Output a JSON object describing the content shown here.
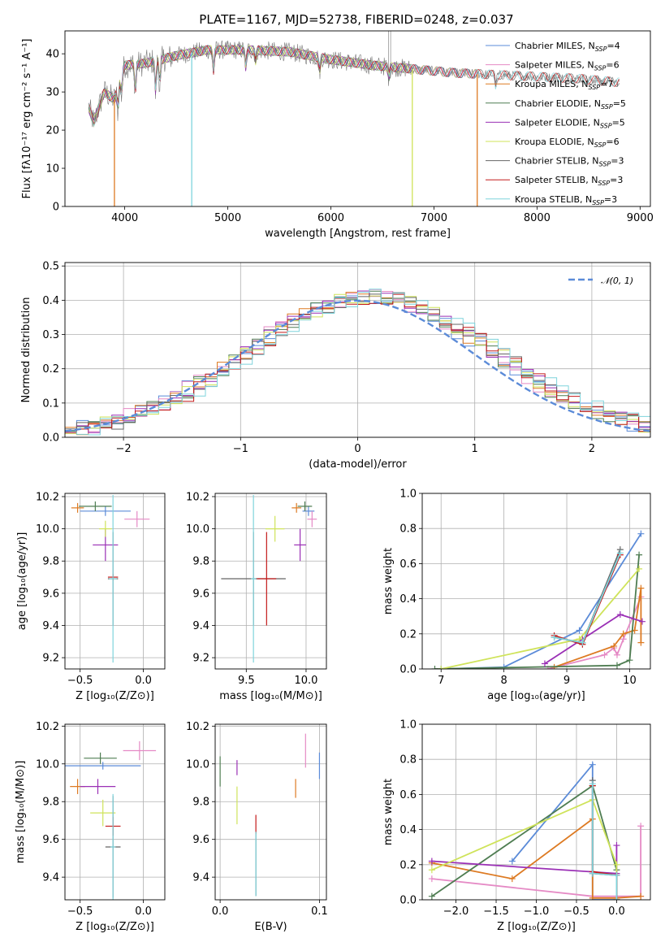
{
  "title": "PLATE=1167, MJD=52738, FIBERID=0248, z=0.037",
  "colors": {
    "chabrier_miles": "#5b8bd8",
    "salpeter_miles": "#e58ac5",
    "kroupa_miles": "#dd7a22",
    "chabrier_elodie": "#4f7d52",
    "salpeter_elodie": "#9a2fb5",
    "kroupa_elodie": "#cfe35a",
    "chabrier_stelib": "#666666",
    "salpeter_stelib": "#c41a1a",
    "kroupa_stelib": "#7fd4dc"
  },
  "chart_data": [
    {
      "id": "spectrum",
      "type": "line",
      "xlabel": "wavelength [Angstrom, rest frame]",
      "ylabel": "Flux [f$_\\lambda$10$^{-17}$ erg cm$^{-2}$ s$^{-1}$ A$^{-1}$]",
      "ylabel_display": "Flux [fλ10⁻¹⁷ erg cm⁻² s⁻¹ A⁻¹]",
      "xlim": [
        3420,
        9100
      ],
      "ylim": [
        0,
        46
      ],
      "xticks": [
        4000,
        5000,
        6000,
        7000,
        8000,
        9000
      ],
      "yticks": [
        0,
        10,
        20,
        30,
        40
      ],
      "grid": false,
      "legend_position": "top-right",
      "series": [
        {
          "name": "Chabrier MILES, N_SSP=4",
          "key": "chabrier_miles",
          "x_range": [
            3650,
            7420
          ]
        },
        {
          "name": "Salpeter MILES, N_SSP=6",
          "key": "salpeter_miles",
          "x_range": [
            3650,
            7420
          ]
        },
        {
          "name": "Kroupa MILES, N_SSP=7",
          "key": "kroupa_miles",
          "x_range": [
            3650,
            7420
          ]
        },
        {
          "name": "Chabrier ELODIE, N_SSP=5",
          "key": "chabrier_elodie",
          "x_range": [
            3650,
            6790
          ]
        },
        {
          "name": "Salpeter ELODIE, N_SSP=5",
          "key": "salpeter_elodie",
          "x_range": [
            3650,
            6790
          ]
        },
        {
          "name": "Kroupa ELODIE, N_SSP=6",
          "key": "kroupa_elodie",
          "x_range": [
            3650,
            6790
          ]
        },
        {
          "name": "Chabrier STELIB, N_SSP=3",
          "key": "chabrier_stelib",
          "x_range": [
            3650,
            8800
          ]
        },
        {
          "name": "Salpeter STELIB, N_SSP=3",
          "key": "salpeter_stelib",
          "x_range": [
            3650,
            8800
          ]
        },
        {
          "name": "Kroupa STELIB, N_SSP=3",
          "key": "kroupa_stelib",
          "x_range": [
            3650,
            8800
          ]
        }
      ],
      "continuum": {
        "x": [
          3650,
          3700,
          3800,
          3900,
          4000,
          4200,
          4500,
          4800,
          5200,
          5600,
          6000,
          6400,
          6800,
          7200,
          7600,
          8000,
          8400,
          8800
        ],
        "y": [
          26,
          22,
          30,
          28,
          37,
          37.5,
          39.5,
          41,
          41,
          40.5,
          38.5,
          37,
          36,
          35,
          34.5,
          34,
          33.5,
          32.5
        ]
      },
      "absorption_features": [
        {
          "x": 3934,
          "depth": 6
        },
        {
          "x": 3968,
          "depth": 5
        },
        {
          "x": 4102,
          "depth": 8
        },
        {
          "x": 4300,
          "depth": 9
        },
        {
          "x": 4340,
          "depth": 7
        },
        {
          "x": 4861,
          "depth": 6
        },
        {
          "x": 5175,
          "depth": 5
        },
        {
          "x": 5270,
          "depth": 3
        },
        {
          "x": 5890,
          "depth": 4
        },
        {
          "x": 6563,
          "depth": 3
        },
        {
          "x": 7600,
          "depth": 3
        }
      ],
      "dropouts": [
        {
          "x": 3900,
          "key": "kroupa_miles"
        },
        {
          "x": 4650,
          "key": "kroupa_stelib"
        },
        {
          "x": 6790,
          "key": "kroupa_elodie"
        },
        {
          "x": 7420,
          "key": "kroupa_miles"
        }
      ]
    },
    {
      "id": "residuals",
      "type": "histogram",
      "xlabel": "(data-model)/error",
      "ylabel": "Normed distribution",
      "xlim": [
        -2.5,
        2.5
      ],
      "ylim": [
        0,
        0.51
      ],
      "xticks": [
        -2,
        -1,
        0,
        1,
        2
      ],
      "yticks": [
        0.0,
        0.1,
        0.2,
        0.3,
        0.4,
        0.5
      ],
      "grid": true,
      "legend_position": "top-right",
      "legend": [
        {
          "label": "𝒩(0, 1)",
          "key": "normal"
        }
      ],
      "reference_curve": "normal pdf, mean 0, sigma 1"
    },
    {
      "id": "age_vs_Z",
      "type": "scatter",
      "xlabel": "Z [log₁₀(Z/Z⊙)]",
      "ylabel": "age  [log₁₀(age/yr)]",
      "xlim": [
        -0.62,
        0.17
      ],
      "ylim": [
        9.13,
        10.22
      ],
      "xticks": [
        -0.5,
        0.0
      ],
      "yticks": [
        9.2,
        9.4,
        9.6,
        9.8,
        10.0,
        10.2
      ],
      "grid": true,
      "points": [
        {
          "key": "chabrier_miles",
          "x": -0.3,
          "y": 10.11,
          "xerr": 0.2,
          "yerr": 0.03
        },
        {
          "key": "salpeter_miles",
          "x": -0.05,
          "y": 10.06,
          "xerr": 0.1,
          "yerr": 0.05
        },
        {
          "key": "kroupa_miles",
          "x": -0.52,
          "y": 10.13,
          "xerr": 0.05,
          "yerr": 0.03
        },
        {
          "key": "chabrier_elodie",
          "x": -0.38,
          "y": 10.14,
          "xerr": 0.13,
          "yerr": 0.03
        },
        {
          "key": "salpeter_elodie",
          "x": -0.3,
          "y": 9.9,
          "xerr": 0.1,
          "yerr": 0.1
        },
        {
          "key": "kroupa_elodie",
          "x": -0.3,
          "y": 10.0,
          "xerr": 0.05,
          "yerr": 0.05
        },
        {
          "key": "chabrier_stelib",
          "x": -0.24,
          "y": 9.69,
          "xerr": 0.04,
          "yerr": 0.29
        },
        {
          "key": "salpeter_stelib",
          "x": -0.24,
          "y": 9.7,
          "xerr": 0.04,
          "yerr": 0.02
        },
        {
          "key": "kroupa_stelib",
          "x": -0.24,
          "y": 9.69,
          "xerr": 0.03,
          "yerr": 0.52
        }
      ]
    },
    {
      "id": "age_vs_mass",
      "type": "scatter",
      "xlabel": "mass [log₁₀(M/M⊙)]",
      "ylabel": "",
      "xlim": [
        9.24,
        10.17
      ],
      "ylim": [
        9.13,
        10.22
      ],
      "xticks": [
        9.5,
        10.0
      ],
      "yticks": [
        9.2,
        9.4,
        9.6,
        9.8,
        10.0,
        10.2
      ],
      "grid": true,
      "points": [
        {
          "key": "chabrier_miles",
          "x": 10.02,
          "y": 10.11,
          "xerr": 0.05,
          "yerr": 0.03
        },
        {
          "key": "salpeter_miles",
          "x": 10.05,
          "y": 10.06,
          "xerr": 0.04,
          "yerr": 0.05
        },
        {
          "key": "kroupa_miles",
          "x": 9.92,
          "y": 10.13,
          "xerr": 0.04,
          "yerr": 0.03
        },
        {
          "key": "chabrier_elodie",
          "x": 9.99,
          "y": 10.14,
          "xerr": 0.06,
          "yerr": 0.03
        },
        {
          "key": "salpeter_elodie",
          "x": 9.95,
          "y": 9.9,
          "xerr": 0.05,
          "yerr": 0.1
        },
        {
          "key": "kroupa_elodie",
          "x": 9.74,
          "y": 10.0,
          "xerr": 0.08,
          "yerr": 0.08
        },
        {
          "key": "chabrier_stelib",
          "x": 9.56,
          "y": 9.69,
          "xerr": 0.27,
          "yerr": 0.29
        },
        {
          "key": "salpeter_stelib",
          "x": 9.67,
          "y": 9.69,
          "xerr": 0.08,
          "yerr": 0.29
        },
        {
          "key": "kroupa_stelib",
          "x": 9.56,
          "y": 9.69,
          "xerr": 0.02,
          "yerr": 0.52
        }
      ]
    },
    {
      "id": "weight_vs_age",
      "type": "line",
      "xlabel": "age  [log₁₀(age/yr)]",
      "ylabel": "mass weight",
      "xlim": [
        6.7,
        10.33
      ],
      "ylim": [
        0,
        1
      ],
      "xticks": [
        7,
        8,
        9,
        10
      ],
      "yticks": [
        0.0,
        0.2,
        0.4,
        0.6,
        0.8,
        1.0
      ],
      "grid": true,
      "series": [
        {
          "key": "chabrier_miles",
          "x": [
            7.0,
            8.0,
            9.2,
            10.18
          ],
          "y": [
            0.0,
            0.01,
            0.22,
            0.77
          ]
        },
        {
          "key": "salpeter_miles",
          "x": [
            8.7,
            9.6,
            9.75,
            9.8,
            9.9,
            10.18
          ],
          "y": [
            0.0,
            0.08,
            0.12,
            0.08,
            0.17,
            0.41
          ]
        },
        {
          "key": "kroupa_miles",
          "x": [
            8.8,
            9.75,
            9.9,
            10.08,
            10.18,
            10.18
          ],
          "y": [
            0.01,
            0.13,
            0.2,
            0.22,
            0.46,
            0.15
          ]
        },
        {
          "key": "chabrier_elodie",
          "x": [
            6.9,
            9.8,
            10.0,
            10.15
          ],
          "y": [
            0.0,
            0.02,
            0.05,
            0.65
          ]
        },
        {
          "key": "salpeter_elodie",
          "x": [
            8.65,
            9.25,
            9.85,
            10.2
          ],
          "y": [
            0.03,
            0.17,
            0.31,
            0.27
          ]
        },
        {
          "key": "kroupa_elodie",
          "x": [
            7.0,
            9.2,
            10.15
          ],
          "y": [
            0.0,
            0.17,
            0.57
          ]
        },
        {
          "key": "chabrier_stelib",
          "x": [
            8.8,
            9.25,
            9.85
          ],
          "y": [
            0.18,
            0.15,
            0.68
          ]
        },
        {
          "key": "salpeter_stelib",
          "x": [
            8.8,
            9.25,
            9.85
          ],
          "y": [
            0.19,
            0.14,
            0.65
          ]
        },
        {
          "key": "kroupa_stelib",
          "x": [
            8.8,
            9.25,
            9.85
          ],
          "y": [
            0.18,
            0.15,
            0.66
          ]
        }
      ]
    },
    {
      "id": "mass_vs_Z",
      "type": "scatter",
      "xlabel": "Z [log₁₀(Z/Z⊙)]",
      "ylabel": "mass [log₁₀(M/M⊙)]",
      "xlim": [
        -0.62,
        0.17
      ],
      "ylim": [
        9.28,
        10.21
      ],
      "xticks": [
        -0.5,
        0.0
      ],
      "yticks": [
        9.4,
        9.6,
        9.8,
        10.0,
        10.2
      ],
      "grid": true,
      "points": [
        {
          "key": "chabrier_miles",
          "x": -0.32,
          "y": 9.99,
          "xerr": 0.3,
          "yerr": 0.02
        },
        {
          "key": "salpeter_miles",
          "x": -0.03,
          "y": 10.07,
          "xerr": 0.13,
          "yerr": 0.05
        },
        {
          "key": "kroupa_miles",
          "x": -0.52,
          "y": 9.88,
          "xerr": 0.06,
          "yerr": 0.04
        },
        {
          "key": "chabrier_elodie",
          "x": -0.34,
          "y": 10.03,
          "xerr": 0.13,
          "yerr": 0.03
        },
        {
          "key": "salpeter_elodie",
          "x": -0.36,
          "y": 9.88,
          "xerr": 0.14,
          "yerr": 0.04
        },
        {
          "key": "kroupa_elodie",
          "x": -0.32,
          "y": 9.74,
          "xerr": 0.1,
          "yerr": 0.07
        },
        {
          "key": "chabrier_stelib",
          "x": -0.24,
          "y": 9.56,
          "xerr": 0.06,
          "yerr": 0.27
        },
        {
          "key": "salpeter_stelib",
          "x": -0.24,
          "y": 9.67,
          "xerr": 0.06,
          "yerr": 0.05
        },
        {
          "key": "kroupa_stelib",
          "x": -0.24,
          "y": 9.56,
          "xerr": 0.02,
          "yerr": 0.28
        }
      ]
    },
    {
      "id": "mass_vs_ebv",
      "type": "scatter",
      "xlabel": "E(B-V)",
      "ylabel": "",
      "xlim": [
        -0.005,
        0.107
      ],
      "ylim": [
        9.28,
        10.21
      ],
      "xticks": [
        0.0,
        0.1
      ],
      "yticks": [
        9.4,
        9.6,
        9.8,
        10.0,
        10.2
      ],
      "grid": true,
      "points": [
        {
          "key": "chabrier_miles",
          "x": 0.1,
          "y": 9.99,
          "xerr": 0,
          "yerr": 0.07
        },
        {
          "key": "salpeter_miles",
          "x": 0.086,
          "y": 10.07,
          "xerr": 0,
          "yerr": 0.09
        },
        {
          "key": "kroupa_miles",
          "x": 0.076,
          "y": 9.87,
          "xerr": 0,
          "yerr": 0.05
        },
        {
          "key": "chabrier_elodie",
          "x": 0.0,
          "y": 9.96,
          "xerr": 0,
          "yerr": 0.08
        },
        {
          "key": "salpeter_elodie",
          "x": 0.017,
          "y": 9.98,
          "xerr": 0,
          "yerr": 0.04
        },
        {
          "key": "kroupa_elodie",
          "x": 0.017,
          "y": 9.78,
          "xerr": 0,
          "yerr": 0.1
        },
        {
          "key": "chabrier_stelib",
          "x": 0.036,
          "y": 9.47,
          "xerr": 0,
          "yerr": 0.17
        },
        {
          "key": "salpeter_stelib",
          "x": 0.036,
          "y": 9.68,
          "xerr": 0,
          "yerr": 0.05
        },
        {
          "key": "kroupa_stelib",
          "x": 0.036,
          "y": 9.47,
          "xerr": 0,
          "yerr": 0.17
        }
      ]
    },
    {
      "id": "weight_vs_Z",
      "type": "line",
      "xlabel": "Z [log₁₀(Z/Z⊙)]",
      "ylabel": "mass weight",
      "xlim": [
        -2.42,
        0.42
      ],
      "ylim": [
        0,
        1
      ],
      "xticks": [
        -2.0,
        -1.5,
        -1.0,
        -0.5,
        0.0
      ],
      "yticks": [
        0.0,
        0.2,
        0.4,
        0.6,
        0.8,
        1.0
      ],
      "grid": true,
      "series": [
        {
          "key": "chabrier_miles",
          "x": [
            -1.3,
            -0.3,
            -0.3,
            0.0
          ],
          "y": [
            0.22,
            0.77,
            0.0,
            0.0
          ]
        },
        {
          "key": "salpeter_miles",
          "x": [
            -2.3,
            -0.3,
            0.3,
            0.3
          ],
          "y": [
            0.12,
            0.02,
            0.02,
            0.42
          ]
        },
        {
          "key": "kroupa_miles",
          "x": [
            -2.3,
            -1.3,
            -0.3,
            -0.3,
            0.0,
            0.3
          ],
          "y": [
            0.21,
            0.12,
            0.46,
            0.01,
            0.01,
            0.02
          ]
        },
        {
          "key": "chabrier_elodie",
          "x": [
            -2.3,
            -0.3,
            0.0,
            0.0
          ],
          "y": [
            0.02,
            0.65,
            0.17,
            0.0
          ]
        },
        {
          "key": "salpeter_elodie",
          "x": [
            -2.3,
            0.0,
            0.0
          ],
          "y": [
            0.22,
            0.15,
            0.31
          ]
        },
        {
          "key": "kroupa_elodie",
          "x": [
            -2.3,
            -0.3,
            0.0,
            0.0
          ],
          "y": [
            0.17,
            0.57,
            0.2,
            0.0
          ]
        },
        {
          "key": "chabrier_stelib",
          "x": [
            -0.3,
            -0.3,
            0.0,
            0.0
          ],
          "y": [
            0.68,
            0.15,
            0.14,
            0.0
          ]
        },
        {
          "key": "salpeter_stelib",
          "x": [
            -0.3,
            -0.3,
            0.0,
            0.0
          ],
          "y": [
            0.65,
            0.16,
            0.14,
            0.0
          ]
        },
        {
          "key": "kroupa_stelib",
          "x": [
            -0.3,
            -0.3,
            0.0,
            0.0
          ],
          "y": [
            0.66,
            0.15,
            0.14,
            0.0
          ]
        }
      ]
    }
  ]
}
